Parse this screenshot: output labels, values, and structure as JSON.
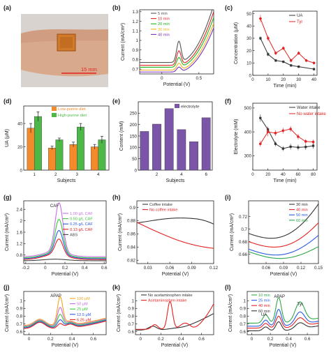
{
  "panels": [
    {
      "letter": "(a)",
      "type": "image",
      "label": "15 mm"
    },
    {
      "letter": "(b)",
      "type": "line",
      "xlabel": "Potential (V)",
      "ylabel": "Current (mA/cm²)",
      "xlim": [
        -0.3,
        0.7
      ],
      "ylim": [
        0.65,
        1.32
      ],
      "xticks": [
        0.0,
        0.5
      ],
      "yticks": [
        0.7,
        0.8,
        0.9,
        1.0,
        1.1,
        1.2,
        1.3
      ],
      "legend": [
        "5 min",
        "10 min",
        "20 min",
        "30 min",
        "40 min"
      ],
      "colors": [
        "#555555",
        "#e32222",
        "#1eb41e",
        "#f5b41e",
        "#7a2eb8"
      ],
      "curve_family": "b",
      "params": [
        {
          "o": 0.07,
          "p": 0.22,
          "lp": 0.6
        },
        {
          "o": 0.04,
          "p": 0.15,
          "lp": 0.56
        },
        {
          "o": 0.02,
          "p": 0.1,
          "lp": 0.52
        },
        {
          "o": -0.01,
          "p": 0.07,
          "lp": 0.49
        },
        {
          "o": -0.03,
          "p": 0.05,
          "lp": 0.46
        }
      ]
    },
    {
      "letter": "(c)",
      "type": "line",
      "xlabel": "Time (min)",
      "ylabel": "Concentration (μM)",
      "xlim": [
        0,
        42
      ],
      "ylim": [
        0,
        52
      ],
      "xticks": [
        0,
        10,
        20,
        30,
        40
      ],
      "yticks": [
        0,
        10,
        20,
        30,
        40,
        50
      ],
      "series": [
        {
          "name": "UA",
          "color": "#333333",
          "x": [
            5,
            10,
            15,
            20,
            25,
            30,
            40
          ],
          "y": [
            30,
            17,
            12,
            11,
            8,
            7,
            5
          ],
          "err": [
            1.5,
            1.5,
            1.2,
            1,
            1,
            1,
            1
          ]
        },
        {
          "name": "Tyr",
          "color": "#e32222",
          "x": [
            5,
            10,
            15,
            20,
            25,
            30,
            35,
            40
          ],
          "y": [
            46,
            30,
            18,
            22,
            12,
            18,
            12,
            10
          ],
          "err": [
            3,
            2,
            1.5,
            1.5,
            1.5,
            1.5,
            1.2,
            1.2
          ]
        }
      ]
    },
    {
      "letter": "(d)",
      "type": "bar",
      "xlabel": "Subjects",
      "ylabel": "UA (μM)",
      "ylim": [
        0,
        55
      ],
      "yticks": [
        0,
        20,
        40
      ],
      "categories": [
        "1",
        "2",
        "3",
        "4"
      ],
      "series": [
        {
          "name": "Low-purine diet",
          "color": "#f58a2a",
          "values": [
            36,
            19,
            22,
            20
          ],
          "err": [
            4,
            1.5,
            2,
            2
          ]
        },
        {
          "name": "High-purine diet",
          "color": "#4db848",
          "values": [
            46,
            26,
            37,
            26
          ],
          "err": [
            4,
            1.5,
            3,
            3
          ]
        }
      ]
    },
    {
      "letter": "(e)",
      "type": "bar",
      "xlabel": "Subjects",
      "ylabel": "Content (mM)",
      "ylim": [
        0,
        300
      ],
      "yticks": [
        0,
        50,
        100,
        150,
        200,
        250
      ],
      "categories": [
        "1",
        "2",
        "3",
        "4",
        "5",
        "6"
      ],
      "tick_labels": [
        "",
        "2",
        "",
        "4",
        "",
        "6"
      ],
      "series": [
        {
          "name": "electrolyte",
          "color": "#7a55a8",
          "values": [
            170,
            202,
            270,
            178,
            125,
            230
          ]
        }
      ]
    },
    {
      "letter": "(f)",
      "type": "line",
      "xlabel": "Time (min)",
      "ylabel": "Electrolyte (mM)",
      "xlim": [
        0,
        85
      ],
      "ylim": [
        240,
        520
      ],
      "xticks": [
        0,
        20,
        40,
        60,
        80
      ],
      "yticks": [
        300,
        400,
        500
      ],
      "series": [
        {
          "name": "Water intake",
          "color": "#333333",
          "x": [
            10,
            20,
            30,
            40,
            50,
            60,
            70,
            80
          ],
          "y": [
            458,
            410,
            350,
            330,
            338,
            335,
            337,
            342
          ],
          "err": [
            15,
            12,
            10,
            10,
            12,
            12,
            12,
            12
          ]
        },
        {
          "name": "No water intake",
          "color": "#e32222",
          "x": [
            10,
            20,
            30,
            40,
            50,
            60,
            70,
            80
          ],
          "y": [
            350,
            400,
            395,
            405,
            412,
            380,
            360,
            358
          ],
          "err": [
            12,
            18,
            12,
            12,
            12,
            12,
            10,
            10
          ]
        }
      ]
    },
    {
      "letter": "(g)",
      "type": "line",
      "xlabel": "Potential (V)",
      "ylabel": "Current (mA/cm²)",
      "xlim": [
        -0.22,
        0.62
      ],
      "ylim": [
        0.5,
        2.7
      ],
      "xticks": [
        -0.2,
        0.0,
        0.2,
        0.4,
        0.6
      ],
      "yticks": [
        0.8,
        1.2,
        1.6,
        2.0,
        2.4
      ],
      "annotation": "CAF",
      "legend": [
        "1.00 g/L CAF",
        "0.50 g/L CAF",
        "0.25 g/L CAF",
        "0.13 g/L CAF",
        "ABS"
      ],
      "colors": [
        "#c86ee6",
        "#3cc83c",
        "#2a5ae6",
        "#e32222",
        "#444444"
      ],
      "curve_family": "g",
      "params": [
        {
          "pk": 1.72,
          "b": 0.74
        },
        {
          "pk": 1.18,
          "b": 0.7
        },
        {
          "pk": 0.82,
          "b": 0.67
        },
        {
          "pk": 0.55,
          "b": 0.64
        },
        {
          "pk": 0.0,
          "b": 0.6
        }
      ]
    },
    {
      "letter": "(h)",
      "type": "line",
      "xlabel": "Potential (V)",
      "ylabel": "Current (mA/cm²)",
      "xlim": [
        0.015,
        0.12
      ],
      "ylim": [
        0.815,
        0.91
      ],
      "xticks": [
        0.03,
        0.06,
        0.09,
        0.12
      ],
      "yticks": [
        0.82,
        0.84,
        0.86,
        0.88,
        0.9
      ],
      "legend": [
        "Coffee intake",
        "No coffee intake"
      ],
      "colors": [
        "#333333",
        "#e32222"
      ],
      "curve_family": "h"
    },
    {
      "letter": "(i)",
      "type": "line",
      "xlabel": "Potential (V)",
      "ylabel": "Current (mA/cm²)",
      "xlim": [
        0.03,
        0.15
      ],
      "ylim": [
        0.645,
        0.745
      ],
      "xticks": [
        0.06,
        0.09,
        0.12,
        0.15
      ],
      "yticks": [
        0.66,
        0.68,
        0.7,
        0.72
      ],
      "legend": [
        "30 min",
        "40 min",
        "50 min",
        "60 min"
      ],
      "colors": [
        "#333333",
        "#e32222",
        "#2a5ae6",
        "#2ea84a"
      ],
      "curve_family": "i",
      "params": [
        {
          "a": 0.693,
          "bend": 0.74
        },
        {
          "a": 0.68,
          "bend": 0.71
        },
        {
          "a": 0.668,
          "bend": 0.69
        },
        {
          "a": 0.664,
          "bend": 0.672
        }
      ]
    },
    {
      "letter": "(j)",
      "type": "line",
      "xlabel": "Potential (V)",
      "ylabel": "Current (mA/cm²)",
      "xlim": [
        -0.05,
        0.72
      ],
      "ylim": [
        0.56,
        1.12
      ],
      "xticks": [
        0.0,
        0.2,
        0.4,
        0.6
      ],
      "yticks": [
        0.6,
        0.7,
        0.8,
        0.9,
        1.0
      ],
      "annotation": "APAP",
      "legend": [
        "100 μM",
        "50 μM",
        "25 μM",
        "12.5 μM",
        "6.25 μM"
      ],
      "colors": [
        "#f5a51e",
        "#c86ee6",
        "#3cc83c",
        "#2a5ae6",
        "#e32222"
      ],
      "curve_family": "j",
      "params": [
        {
          "pk": 0.37,
          "b": 0.04
        },
        {
          "pk": 0.24,
          "b": 0.03
        },
        {
          "pk": 0.16,
          "b": 0.02
        },
        {
          "pk": 0.1,
          "b": 0.01
        },
        {
          "pk": 0.06,
          "b": 0.0
        }
      ]
    },
    {
      "letter": "(k)",
      "type": "line",
      "xlabel": "Potential (V)",
      "ylabel": "Current (mA/cm²)",
      "xlim": [
        -0.05,
        0.72
      ],
      "ylim": [
        0.56,
        1.12
      ],
      "xticks": [
        0.0,
        0.2,
        0.4,
        0.6
      ],
      "yticks": [
        0.6,
        0.7,
        0.8,
        0.9,
        1.0
      ],
      "legend": [
        "No acetaminophen intake",
        "Acetaminophen intake"
      ],
      "colors": [
        "#333333",
        "#e32222"
      ],
      "curve_family": "k"
    },
    {
      "letter": "(l)",
      "type": "line",
      "xlabel": "Potential (V)",
      "ylabel": "Current (mA/cm²)",
      "xlim": [
        -0.05,
        0.72
      ],
      "ylim": [
        0.56,
        1.12
      ],
      "xticks": [
        0.0,
        0.2,
        0.4,
        0.6
      ],
      "yticks": [
        0.6,
        0.7,
        0.8,
        0.9,
        1.0
      ],
      "annotations": [
        "UA",
        "APAP",
        "Tyr"
      ],
      "legend": [
        "10 min",
        "25 min",
        "40 min",
        "60 min"
      ],
      "colors": [
        "#2ea84a",
        "#2a5ae6",
        "#e32222",
        "#333333"
      ],
      "curve_family": "l",
      "params": [
        {
          "s": 1.0,
          "b": 0.1
        },
        {
          "s": 0.55,
          "b": 0.06
        },
        {
          "s": 0.3,
          "b": 0.035
        },
        {
          "s": 0.15,
          "b": 0.0
        }
      ]
    }
  ]
}
